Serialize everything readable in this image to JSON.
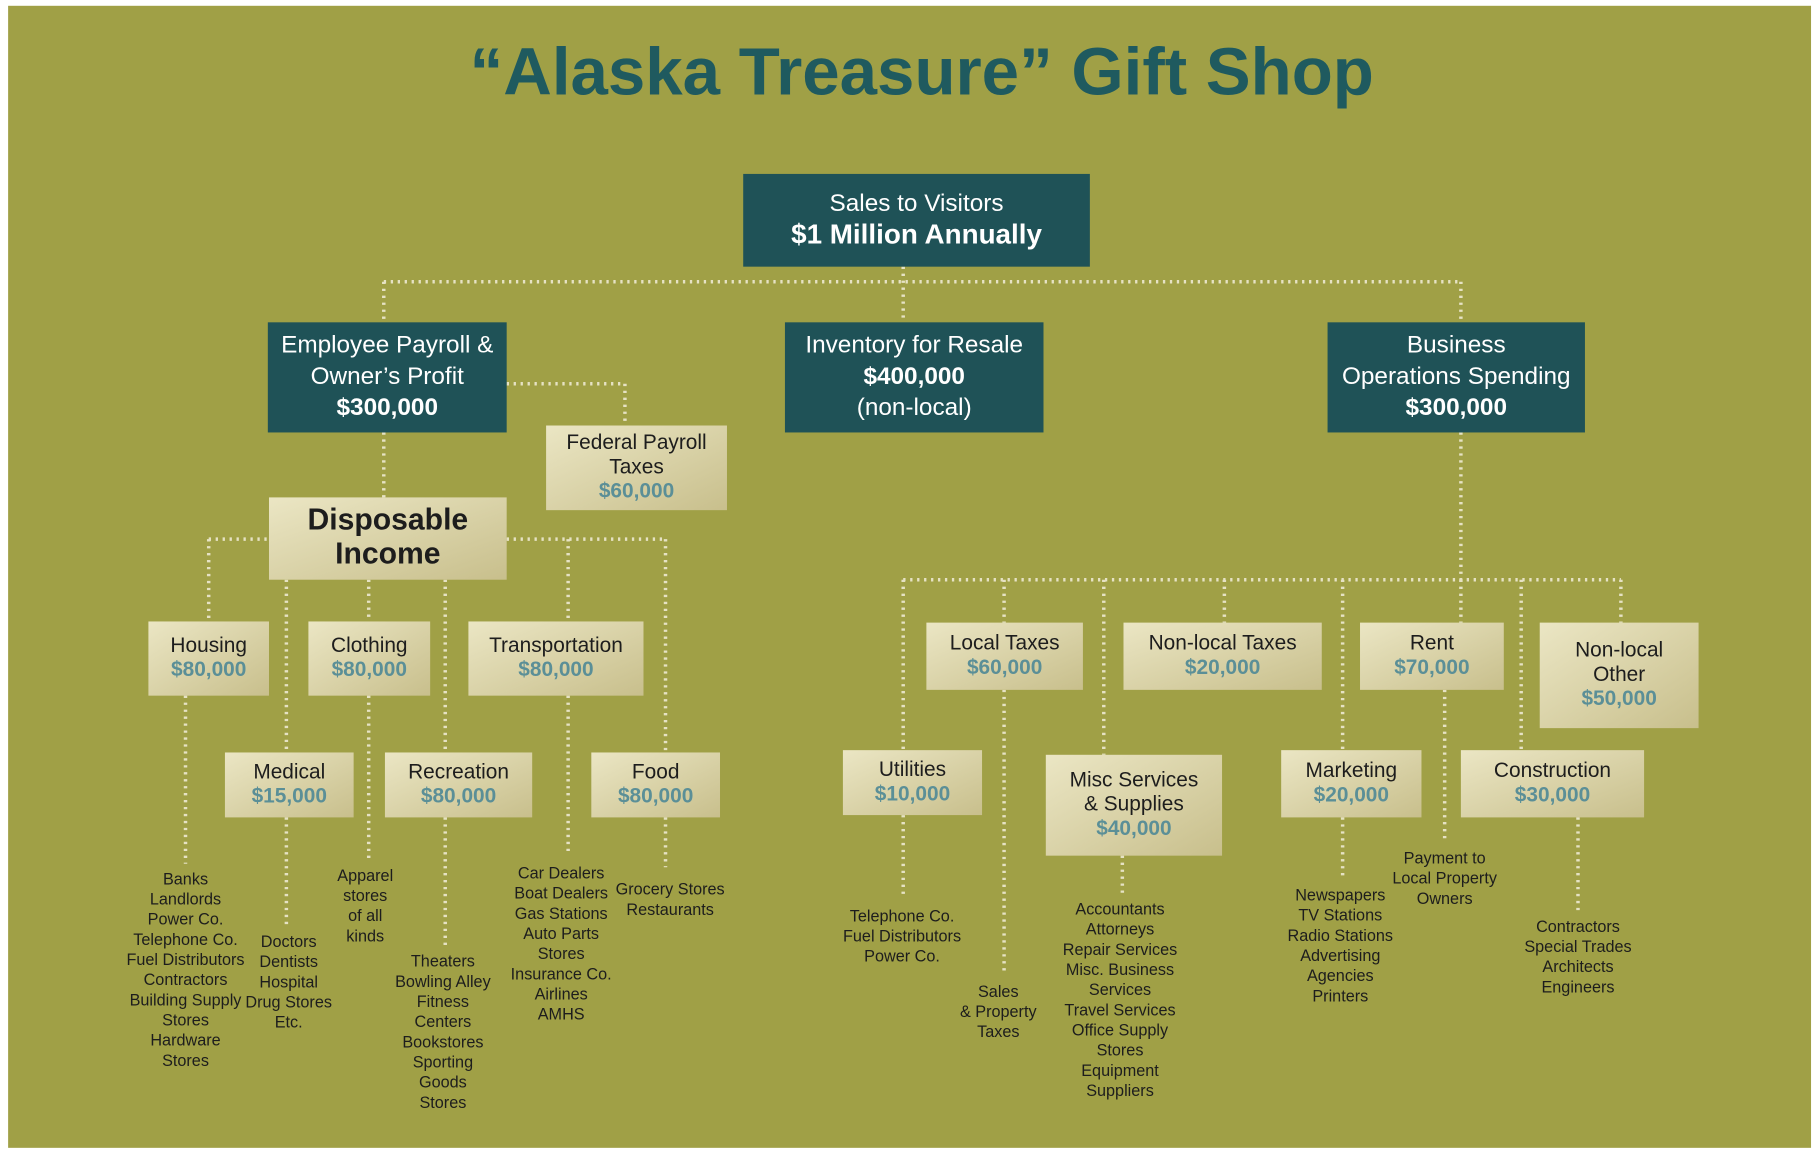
{
  "title": "“Alaska Treasure” Gift Shop",
  "nodes": [
    {
      "label": [
        "Sales to Visitors"
      ],
      "amount": "$1 Million Annually"
    },
    {
      "label": [
        "Employee Payroll &",
        "Owner’s Profit"
      ],
      "amount": "$300,000"
    },
    {
      "label": [
        "Inventory for Resale"
      ],
      "amount": "$400,000",
      "note": "(non-local)"
    },
    {
      "label": [
        "Business",
        "Operations Spending"
      ],
      "amount": "$300,000"
    },
    {
      "label": [
        "Federal Payroll",
        "Taxes"
      ],
      "amount": "$60,000"
    },
    {
      "label": [
        "Disposable",
        "Income"
      ]
    },
    {
      "label": [
        "Housing"
      ],
      "amount": "$80,000",
      "examples": [
        "Banks",
        "Landlords",
        "Power Co.",
        "Telephone Co.",
        "Fuel Distributors",
        "Contractors",
        "Building Supply",
        "Stores",
        "Hardware",
        "Stores"
      ]
    },
    {
      "label": [
        "Clothing"
      ],
      "amount": "$80,000",
      "examples": [
        "Apparel",
        "stores",
        "of all",
        "kinds"
      ]
    },
    {
      "label": [
        "Transportation"
      ],
      "amount": "$80,000",
      "examples": [
        "Car Dealers",
        "Boat Dealers",
        "Gas Stations",
        "Auto Parts",
        "Stores",
        "Insurance Co.",
        "Airlines",
        "AMHS"
      ]
    },
    {
      "label": [
        "Medical"
      ],
      "amount": "$15,000",
      "examples": [
        "Doctors",
        "Dentists",
        "Hospital",
        "Drug Stores",
        "Etc."
      ]
    },
    {
      "label": [
        "Recreation"
      ],
      "amount": "$80,000",
      "examples": [
        "Theaters",
        "Bowling Alley",
        "Fitness",
        "Centers",
        "Bookstores",
        "Sporting",
        "Goods",
        "Stores"
      ]
    },
    {
      "label": [
        "Food"
      ],
      "amount": "$80,000",
      "examples": [
        "Grocery Stores",
        "Restaurants"
      ]
    },
    {
      "label": [
        "Local Taxes"
      ],
      "amount": "$60,000",
      "examples": [
        "Sales",
        "& Property",
        "Taxes"
      ]
    },
    {
      "label": [
        "Non-local Taxes"
      ],
      "amount": "$20,000"
    },
    {
      "label": [
        "Rent"
      ],
      "amount": "$70,000",
      "examples": [
        "Payment to",
        "Local Property",
        "Owners"
      ]
    },
    {
      "label": [
        "Non-local",
        "Other"
      ],
      "amount": "$50,000"
    },
    {
      "label": [
        "Utilities"
      ],
      "amount": "$10,000",
      "examples": [
        "Telephone Co.",
        "Fuel Distributors",
        "Power Co."
      ]
    },
    {
      "label": [
        "Misc Services",
        "& Supplies"
      ],
      "amount": "$40,000",
      "examples": [
        "Accountants",
        "Attorneys",
        "Repair Services",
        "Misc. Business",
        "Services",
        "Travel Services",
        "Office Supply",
        "Stores",
        "Equipment",
        "Suppliers"
      ]
    },
    {
      "label": [
        "Marketing"
      ],
      "amount": "$20,000",
      "examples": [
        "Newspapers",
        "TV Stations",
        "Radio Stations",
        "Advertising",
        "Agencies",
        "Printers"
      ]
    },
    {
      "label": [
        "Construction"
      ],
      "amount": "$30,000",
      "examples": [
        "Contractors",
        "Special Trades",
        "Architects",
        "Engineers"
      ]
    }
  ]
}
